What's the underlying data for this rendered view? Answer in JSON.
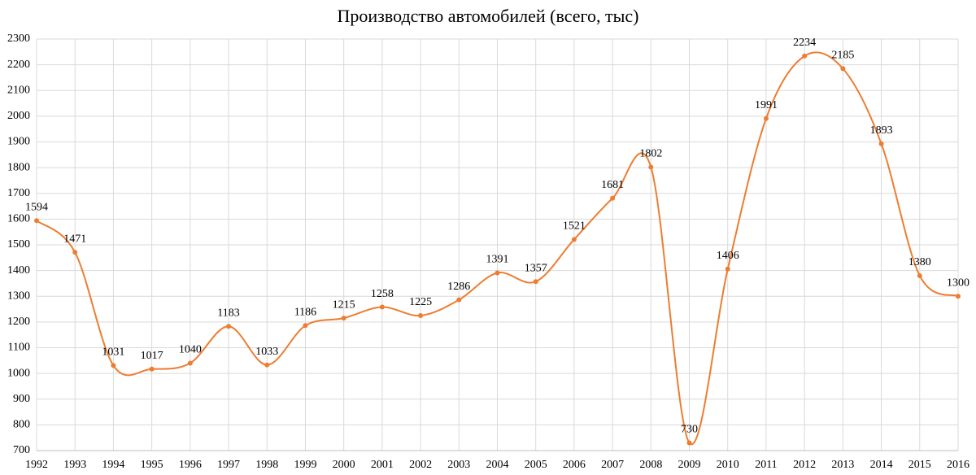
{
  "chart_data": {
    "type": "line",
    "title": "Производство автомобилей (всего, тыс)",
    "categories": [
      "1992",
      "1993",
      "1994",
      "1995",
      "1996",
      "1997",
      "1998",
      "1999",
      "2000",
      "2001",
      "2002",
      "2003",
      "2004",
      "2005",
      "2006",
      "2007",
      "2008",
      "2009",
      "2010",
      "2011",
      "2012",
      "2013",
      "2014",
      "2015",
      "2016"
    ],
    "values": [
      1594,
      1471,
      1031,
      1017,
      1040,
      1183,
      1033,
      1186,
      1215,
      1258,
      1225,
      1286,
      1391,
      1357,
      1521,
      1681,
      1802,
      730,
      1406,
      1991,
      2234,
      2185,
      1893,
      1380,
      1300
    ],
    "color": "#ED7D31",
    "smooth": true,
    "grid": true,
    "ylim": [
      700,
      2300
    ],
    "yticks": [
      700,
      800,
      900,
      1000,
      1100,
      1200,
      1300,
      1400,
      1500,
      1600,
      1700,
      1800,
      1900,
      2000,
      2100,
      2200,
      2300
    ]
  }
}
